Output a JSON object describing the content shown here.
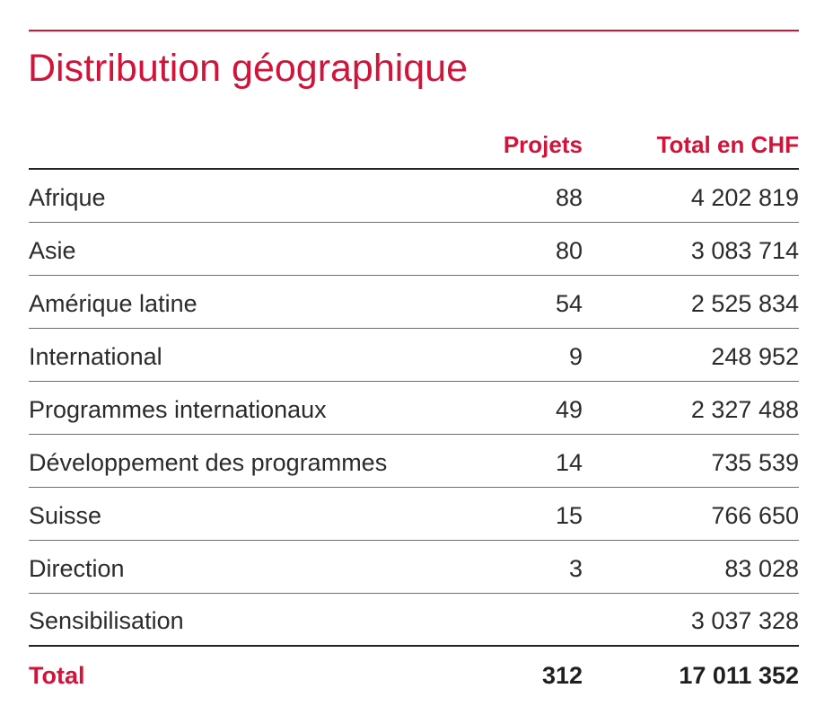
{
  "title": "Distribution géographique",
  "colors": {
    "accent": "#d2143a",
    "text": "#2b2b2b"
  },
  "table": {
    "headers": {
      "region": "",
      "projets": "Projets",
      "total": "Total en CHF"
    },
    "rows": [
      {
        "region": "Afrique",
        "projets": "88",
        "total": "4 202 819"
      },
      {
        "region": "Asie",
        "projets": "80",
        "total": "3 083 714"
      },
      {
        "region": "Amérique latine",
        "projets": "54",
        "total": "2 525 834"
      },
      {
        "region": "International",
        "projets": "9",
        "total": "248 952"
      },
      {
        "region": "Programmes internationaux",
        "projets": "49",
        "total": "2 327 488"
      },
      {
        "region": "Développement des programmes",
        "projets": "14",
        "total": "735 539"
      },
      {
        "region": "Suisse",
        "projets": "15",
        "total": "766 650"
      },
      {
        "region": "Direction",
        "projets": "3",
        "total": "83 028"
      },
      {
        "region": "Sensibilisation",
        "projets": "",
        "total": "3 037 328"
      }
    ],
    "total_row": {
      "region": "Total",
      "projets": "312",
      "total": "17 011 352"
    }
  }
}
